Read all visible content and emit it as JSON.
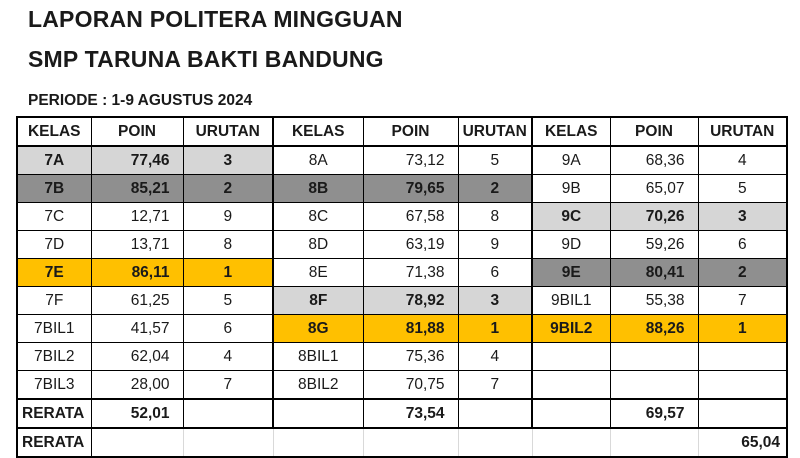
{
  "page": {
    "title_line1": "LAPORAN POLITERA MINGGUAN",
    "title_line2": "SMP TARUNA BAKTI BANDUNG",
    "periode": "PERIODE : 1-9 AGUSTUS 2024"
  },
  "colors": {
    "rank1_gold": "#FFC000",
    "rank2_dark_gray": "#8F8F8F",
    "rank3_light_gray": "#D6D6D6",
    "border": "#000000"
  },
  "table": {
    "headers": [
      "KELAS",
      "POIN",
      "URUTAN",
      "KELAS",
      "POIN",
      "URUTAN",
      "KELAS",
      "POIN",
      "URUTAN"
    ],
    "rerata_label": "RERATA",
    "overall_rerata_label": "RERATA",
    "overall_rerata": "65,04",
    "groups": [
      {
        "rerata": "52,01",
        "rows": [
          {
            "kelas": "7A",
            "poin": "77,46",
            "urutan": "3",
            "highlight": "light"
          },
          {
            "kelas": "7B",
            "poin": "85,21",
            "urutan": "2",
            "highlight": "dark"
          },
          {
            "kelas": "7C",
            "poin": "12,71",
            "urutan": "9",
            "highlight": "none"
          },
          {
            "kelas": "7D",
            "poin": "13,71",
            "urutan": "8",
            "highlight": "none"
          },
          {
            "kelas": "7E",
            "poin": "86,11",
            "urutan": "1",
            "highlight": "gold"
          },
          {
            "kelas": "7F",
            "poin": "61,25",
            "urutan": "5",
            "highlight": "none"
          },
          {
            "kelas": "7BIL1",
            "poin": "41,57",
            "urutan": "6",
            "highlight": "none"
          },
          {
            "kelas": "7BIL2",
            "poin": "62,04",
            "urutan": "4",
            "highlight": "none"
          },
          {
            "kelas": "7BIL3",
            "poin": "28,00",
            "urutan": "7",
            "highlight": "none"
          }
        ]
      },
      {
        "rerata": "73,54",
        "rows": [
          {
            "kelas": "8A",
            "poin": "73,12",
            "urutan": "5",
            "highlight": "none"
          },
          {
            "kelas": "8B",
            "poin": "79,65",
            "urutan": "2",
            "highlight": "dark"
          },
          {
            "kelas": "8C",
            "poin": "67,58",
            "urutan": "8",
            "highlight": "none"
          },
          {
            "kelas": "8D",
            "poin": "63,19",
            "urutan": "9",
            "highlight": "none"
          },
          {
            "kelas": "8E",
            "poin": "71,38",
            "urutan": "6",
            "highlight": "none"
          },
          {
            "kelas": "8F",
            "poin": "78,92",
            "urutan": "3",
            "highlight": "light"
          },
          {
            "kelas": "8G",
            "poin": "81,88",
            "urutan": "1",
            "highlight": "gold"
          },
          {
            "kelas": "8BIL1",
            "poin": "75,36",
            "urutan": "4",
            "highlight": "none"
          },
          {
            "kelas": "8BIL2",
            "poin": "70,75",
            "urutan": "7",
            "highlight": "none"
          }
        ]
      },
      {
        "rerata": "69,57",
        "rows": [
          {
            "kelas": "9A",
            "poin": "68,36",
            "urutan": "4",
            "highlight": "none"
          },
          {
            "kelas": "9B",
            "poin": "65,07",
            "urutan": "5",
            "highlight": "none"
          },
          {
            "kelas": "9C",
            "poin": "70,26",
            "urutan": "3",
            "highlight": "light"
          },
          {
            "kelas": "9D",
            "poin": "59,26",
            "urutan": "6",
            "highlight": "none"
          },
          {
            "kelas": "9E",
            "poin": "80,41",
            "urutan": "2",
            "highlight": "dark"
          },
          {
            "kelas": "9BIL1",
            "poin": "55,38",
            "urutan": "7",
            "highlight": "none"
          },
          {
            "kelas": "9BIL2",
            "poin": "88,26",
            "urutan": "1",
            "highlight": "gold"
          },
          {
            "kelas": "",
            "poin": "",
            "urutan": "",
            "highlight": "none"
          },
          {
            "kelas": "",
            "poin": "",
            "urutan": "",
            "highlight": "none"
          }
        ]
      }
    ]
  }
}
